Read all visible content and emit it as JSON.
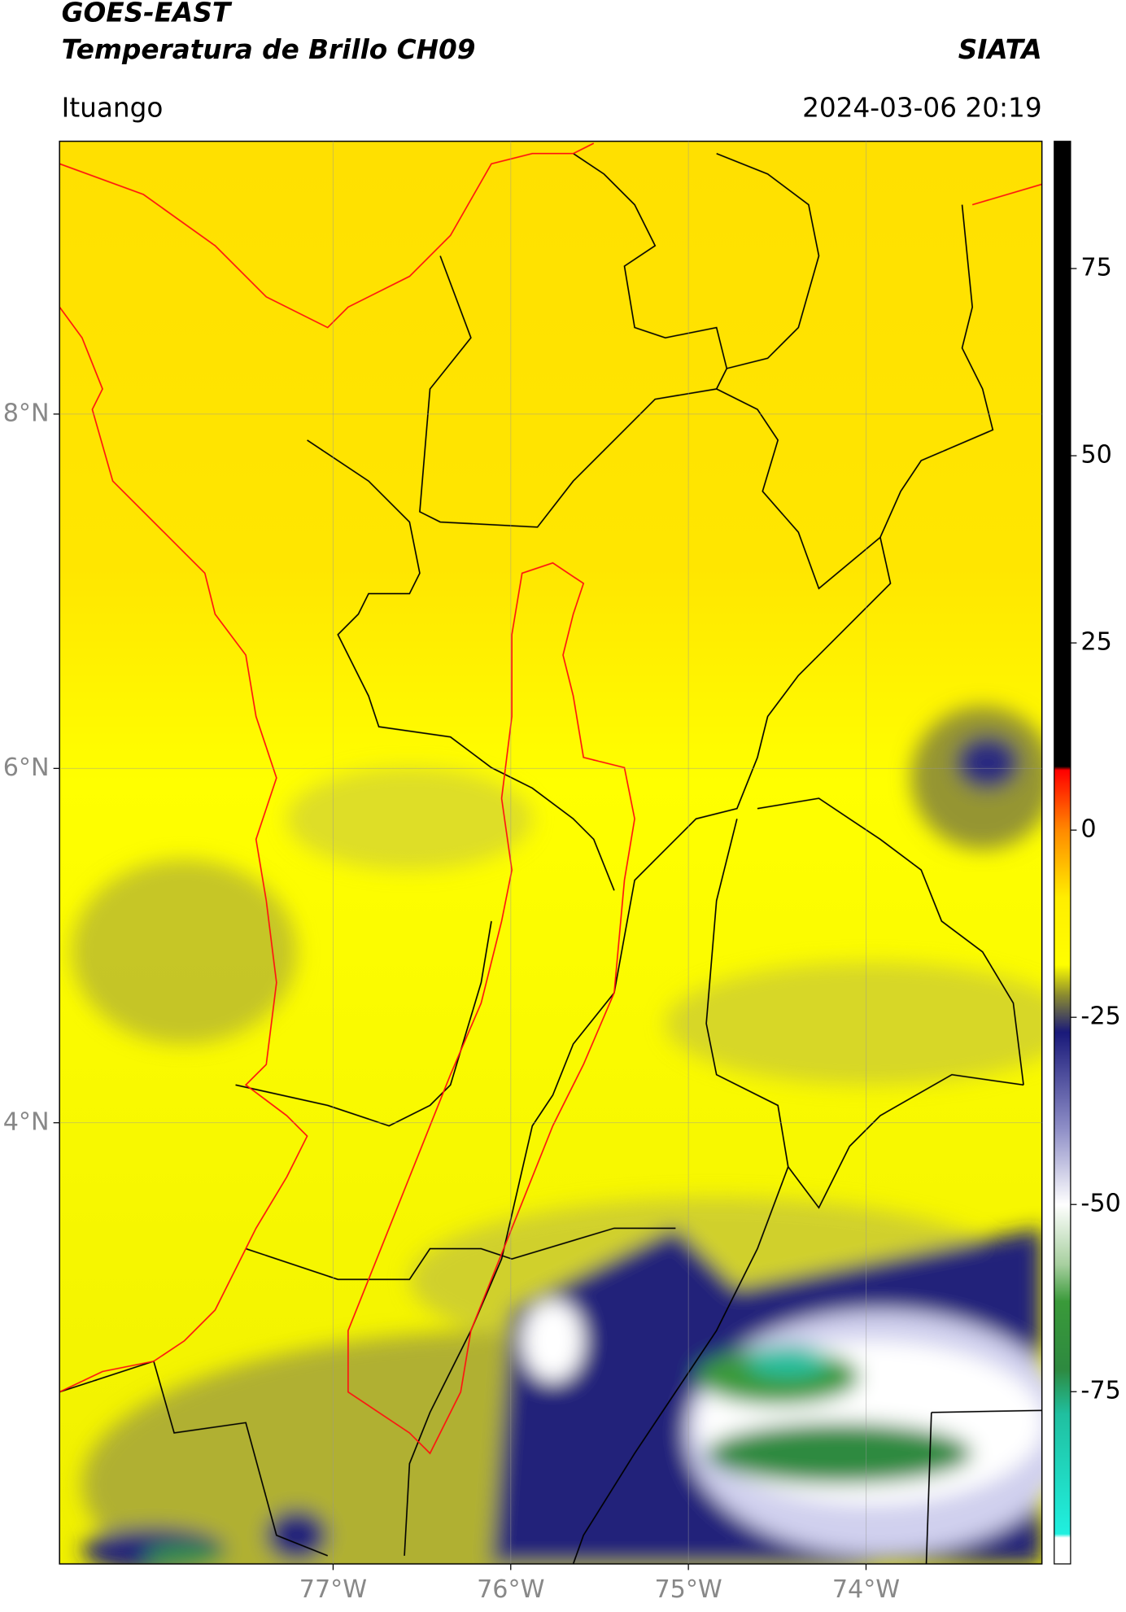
{
  "header": {
    "title": "GOES-EAST",
    "subtitle": "Temperatura de Brillo CH09",
    "source": "SIATA",
    "location": "Ituango",
    "datetime": "2024-03-06 20:19"
  },
  "map": {
    "xlim": [
      -78.54,
      -73.01
    ],
    "ylim": [
      1.51,
      9.54
    ],
    "xticks": [
      {
        "value": -77,
        "label": "77°W"
      },
      {
        "value": -76,
        "label": "76°W"
      },
      {
        "value": -75,
        "label": "75°W"
      },
      {
        "value": -74,
        "label": "74°W"
      }
    ],
    "yticks": [
      {
        "value": 8,
        "label": "8°N"
      },
      {
        "value": 6,
        "label": "6°N"
      },
      {
        "value": 4,
        "label": "4°N"
      }
    ],
    "grid": true
  },
  "colorbar": {
    "ylim": [
      -98,
      92
    ],
    "yticks": [
      75,
      50,
      25,
      0,
      -25,
      -50,
      -75
    ],
    "colormap": [
      {
        "value": 92,
        "color": "#000000"
      },
      {
        "value": 8.5,
        "color": "#000000"
      },
      {
        "value": 8,
        "color": "#ff0000"
      },
      {
        "value": 0,
        "color": "#ff8a00"
      },
      {
        "value": -9,
        "color": "#ffee00"
      },
      {
        "value": -18,
        "color": "#ffff00"
      },
      {
        "value": -22,
        "color": "#8c8c30"
      },
      {
        "value": -27,
        "color": "#1a1a7a"
      },
      {
        "value": -40,
        "color": "#9090c8"
      },
      {
        "value": -50,
        "color": "#ffffff"
      },
      {
        "value": -58,
        "color": "#a8d0a0"
      },
      {
        "value": -63,
        "color": "#3a9a3a"
      },
      {
        "value": -72,
        "color": "#2e8a40"
      },
      {
        "value": -78,
        "color": "#20c0a0"
      },
      {
        "value": -94,
        "color": "#20f0e0"
      },
      {
        "value": -94.5,
        "color": "#ffffff"
      },
      {
        "value": -98,
        "color": "#ffffff"
      }
    ]
  }
}
